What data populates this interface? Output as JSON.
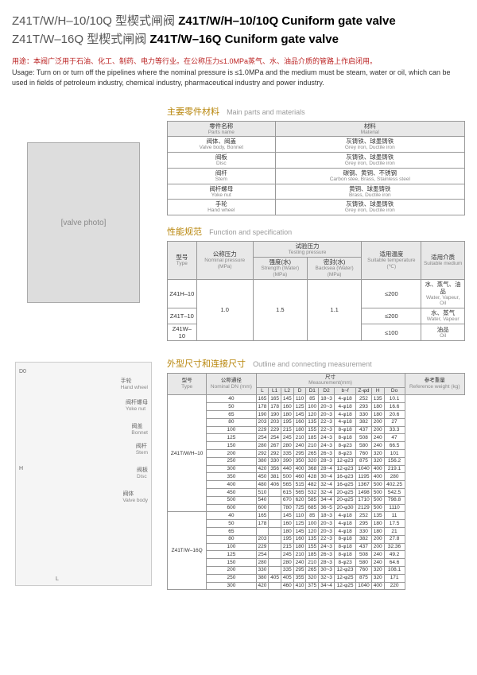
{
  "title1_zh": "Z41T/W/H–10/10Q 型楔式闸阀",
  "title1_en": "Z41T/W/H–10/10Q Cuniform gate valve",
  "title2_zh": "Z41T/W–16Q 型楔式闸阀",
  "title2_en": "Z41T/W–16Q Cuniform gate valve",
  "usage_zh": "用途：本阀广泛用于石油、化工、制药、电力等行业。在公称压力≤1.0MPa蒸气、水、油品介质的管路上作启闭用。",
  "usage_en": "Usage: Turn on or turn off the pipelines where the nominal pressure is ≤1.0MPa and the medium must be steam, water or oil, which can be used in fields of petroleum industry, chemical industry, pharmaceutical industry and power industry.",
  "sec_materials_zh": "主要零件材料",
  "sec_materials_en": "Main parts and materials",
  "mat_headers": {
    "part_zh": "零件名称",
    "part_en": "Parts name",
    "mat_zh": "材料",
    "mat_en": "Material"
  },
  "materials": [
    {
      "part_zh": "阀体、阀盖",
      "part_en": "Valve body, Bonnet",
      "mat_zh": "灰铸铁、球墨铸铁",
      "mat_en": "Grey iron, Ductile iron"
    },
    {
      "part_zh": "阀板",
      "part_en": "Disc",
      "mat_zh": "灰铸铁、球墨铸铁",
      "mat_en": "Grey iron, Ductile iron"
    },
    {
      "part_zh": "阀杆",
      "part_en": "Stem",
      "mat_zh": "碳钢、黄铜、不锈钢",
      "mat_en": "Carbon stee, Brass, Stainless steel"
    },
    {
      "part_zh": "阀杆螺母",
      "part_en": "Yoke nut",
      "mat_zh": "黄铜、球墨铸铁",
      "mat_en": "Brass, Ductile iron"
    },
    {
      "part_zh": "手轮",
      "part_en": "Hand wheel",
      "mat_zh": "灰铸铁、球墨铸铁",
      "mat_en": "Grey iron, Ductile iron"
    }
  ],
  "sec_spec_zh": "性能规范",
  "sec_spec_en": "Function and specification",
  "spec_headers": {
    "type_zh": "型号",
    "type_en": "Type",
    "nominal_zh": "公称压力",
    "nominal_en": "Nominal pressure (MPa)",
    "test_zh": "试验压力",
    "test_en": "Testing pressure",
    "strength_zh": "强度(水)",
    "strength_en": "Strength (Water) (MPa)",
    "seal_zh": "密封(水)",
    "seal_en": "Backsea (Water) (MPa)",
    "temp_zh": "适用温度",
    "temp_en": "Suitable temperature (℃)",
    "medium_zh": "适用介质",
    "medium_en": "Suitable medium"
  },
  "specs": [
    {
      "type": "Z41H–10",
      "nominal": "1.0",
      "strength": "1.5",
      "seal": "1.1",
      "temp": "≤200",
      "medium_zh": "水、蒸气、油品",
      "medium_en": "Water, Vapeur, Oil"
    },
    {
      "type": "Z41T–10",
      "nominal": "",
      "strength": "",
      "seal": "",
      "temp": "≤200",
      "medium_zh": "水、蒸气",
      "medium_en": "Water, Vapeur"
    },
    {
      "type": "Z41W–10",
      "nominal": "",
      "strength": "",
      "seal": "",
      "temp": "≤100",
      "medium_zh": "油品",
      "medium_en": "Oil"
    }
  ],
  "sec_dim_zh": "外型尺寸和连接尺寸",
  "sec_dim_en": "Outline and connecting measurement",
  "dim_headers": {
    "type_zh": "型号",
    "type_en": "Type",
    "dn_zh": "公称通径",
    "dn_en": "Nominal DN (mm)",
    "meas_zh": "尺寸",
    "meas_en": "Measurement(mm)",
    "weight_zh": "参考重量",
    "weight_en": "Reference weight (kg)"
  },
  "dim_cols": [
    "L",
    "L1",
    "L2",
    "D",
    "D1",
    "D2",
    "b~f",
    "Z-φd",
    "H",
    "Do"
  ],
  "dim_groups": [
    {
      "type": "Z41T/W/H–10",
      "rows": [
        [
          "40",
          "165",
          "165",
          "145",
          "110",
          "85",
          "18~3",
          "4-φ18",
          "252",
          "135",
          "10.1"
        ],
        [
          "50",
          "178",
          "178",
          "160",
          "125",
          "100",
          "20~3",
          "4-φ18",
          "293",
          "180",
          "16.6"
        ],
        [
          "65",
          "190",
          "190",
          "180",
          "145",
          "120",
          "20~3",
          "4-φ18",
          "330",
          "180",
          "20.6"
        ],
        [
          "80",
          "203",
          "203",
          "195",
          "160",
          "135",
          "22~3",
          "4-φ18",
          "382",
          "200",
          "27"
        ],
        [
          "100",
          "229",
          "229",
          "215",
          "180",
          "155",
          "22~3",
          "8-φ18",
          "437",
          "200",
          "33.3"
        ],
        [
          "125",
          "254",
          "254",
          "245",
          "210",
          "185",
          "24~3",
          "8-φ18",
          "508",
          "240",
          "47"
        ],
        [
          "150",
          "280",
          "267",
          "280",
          "240",
          "210",
          "24~3",
          "8-φ23",
          "580",
          "240",
          "66.5"
        ],
        [
          "200",
          "292",
          "292",
          "335",
          "295",
          "265",
          "26~3",
          "8-φ23",
          "760",
          "320",
          "101"
        ],
        [
          "250",
          "380",
          "330",
          "390",
          "350",
          "320",
          "28~3",
          "12-φ23",
          "875",
          "320",
          "156.2"
        ],
        [
          "300",
          "420",
          "356",
          "440",
          "400",
          "368",
          "28~4",
          "12-φ23",
          "1040",
          "400",
          "219.1"
        ],
        [
          "350",
          "450",
          "381",
          "500",
          "460",
          "428",
          "30~4",
          "16-φ23",
          "1195",
          "400",
          "280"
        ],
        [
          "400",
          "480",
          "406",
          "565",
          "515",
          "482",
          "32~4",
          "16-φ25",
          "1367",
          "500",
          "402.25"
        ],
        [
          "450",
          "510",
          "",
          "615",
          "565",
          "532",
          "32~4",
          "20-φ25",
          "1498",
          "500",
          "542.5"
        ],
        [
          "500",
          "540",
          "",
          "670",
          "620",
          "585",
          "34~4",
          "20-φ25",
          "1710",
          "500",
          "798.8"
        ],
        [
          "600",
          "600",
          "",
          "780",
          "725",
          "685",
          "36~5",
          "20-φ30",
          "2129",
          "500",
          "1110"
        ]
      ]
    },
    {
      "type": "Z41T/W–16Q",
      "rows": [
        [
          "40",
          "165",
          "",
          "145",
          "110",
          "85",
          "18~3",
          "4-φ18",
          "252",
          "135",
          "11"
        ],
        [
          "50",
          "178",
          "",
          "160",
          "125",
          "100",
          "20~3",
          "4-φ18",
          "295",
          "180",
          "17.5"
        ],
        [
          "65",
          "",
          "",
          "180",
          "145",
          "120",
          "20~3",
          "4-φ18",
          "330",
          "180",
          "21"
        ],
        [
          "80",
          "203",
          "",
          "195",
          "160",
          "135",
          "22~3",
          "8-φ18",
          "382",
          "200",
          "27.8"
        ],
        [
          "100",
          "229",
          "",
          "215",
          "180",
          "155",
          "24~3",
          "8-φ18",
          "437",
          "200",
          "32.36"
        ],
        [
          "125",
          "254",
          "",
          "245",
          "210",
          "185",
          "26~3",
          "8-φ18",
          "508",
          "240",
          "49.2"
        ],
        [
          "150",
          "280",
          "",
          "280",
          "240",
          "210",
          "28~3",
          "8-φ23",
          "580",
          "240",
          "64.6"
        ],
        [
          "200",
          "330",
          "",
          "335",
          "295",
          "265",
          "30~3",
          "12-φ23",
          "760",
          "320",
          "108.1"
        ],
        [
          "250",
          "380",
          "405",
          "405",
          "355",
          "320",
          "32~3",
          "12-φ25",
          "875",
          "320",
          "171"
        ],
        [
          "300",
          "420",
          "",
          "460",
          "410",
          "375",
          "34~4",
          "12-φ25",
          "1040",
          "400",
          "220"
        ]
      ]
    }
  ],
  "diagram_labels": {
    "handwheel_zh": "手轮",
    "handwheel_en": "Hand wheel",
    "yokenut_zh": "阀杆螺母",
    "yokenut_en": "Yoke nut",
    "bonnet_zh": "阀盖",
    "bonnet_en": "Bonnet",
    "stem_zh": "阀杆",
    "stem_en": "Stem",
    "disc_zh": "阀板",
    "disc_en": "Disc",
    "body_zh": "阀体",
    "body_en": "Valve body"
  }
}
